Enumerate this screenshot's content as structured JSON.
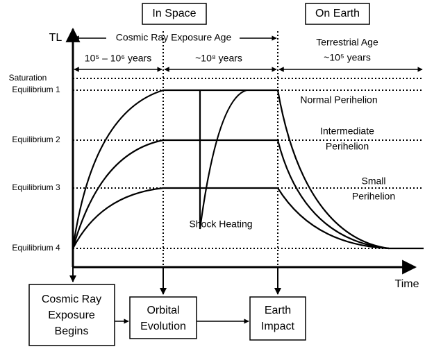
{
  "header": {
    "in_space": "In Space",
    "on_earth": "On Earth"
  },
  "axes": {
    "y": "TL",
    "x": "Time"
  },
  "spans": {
    "exposure_age": "Cosmic Ray Exposure Age",
    "early": "10⁵ – 10⁶ years",
    "late": "~10⁸ years",
    "terrestrial": [
      "Terrestrial Age",
      "~10⁵ years"
    ]
  },
  "levels": [
    "Saturation",
    "Equilibrium 1",
    "Equilibrium 2",
    "Equilibrium 3",
    "Equilibrium 4"
  ],
  "curves": {
    "normal": [
      "Normal Perihelion"
    ],
    "intermediate": [
      "Intermediate",
      "Perihelion"
    ],
    "small": [
      "Small",
      "Perihelion"
    ],
    "shock": "Shock Heating"
  },
  "boxes": [
    [
      "Cosmic Ray",
      "Exposure",
      "Begins"
    ],
    [
      "Orbital",
      "Evolution"
    ],
    [
      "Earth",
      "Impact"
    ]
  ]
}
